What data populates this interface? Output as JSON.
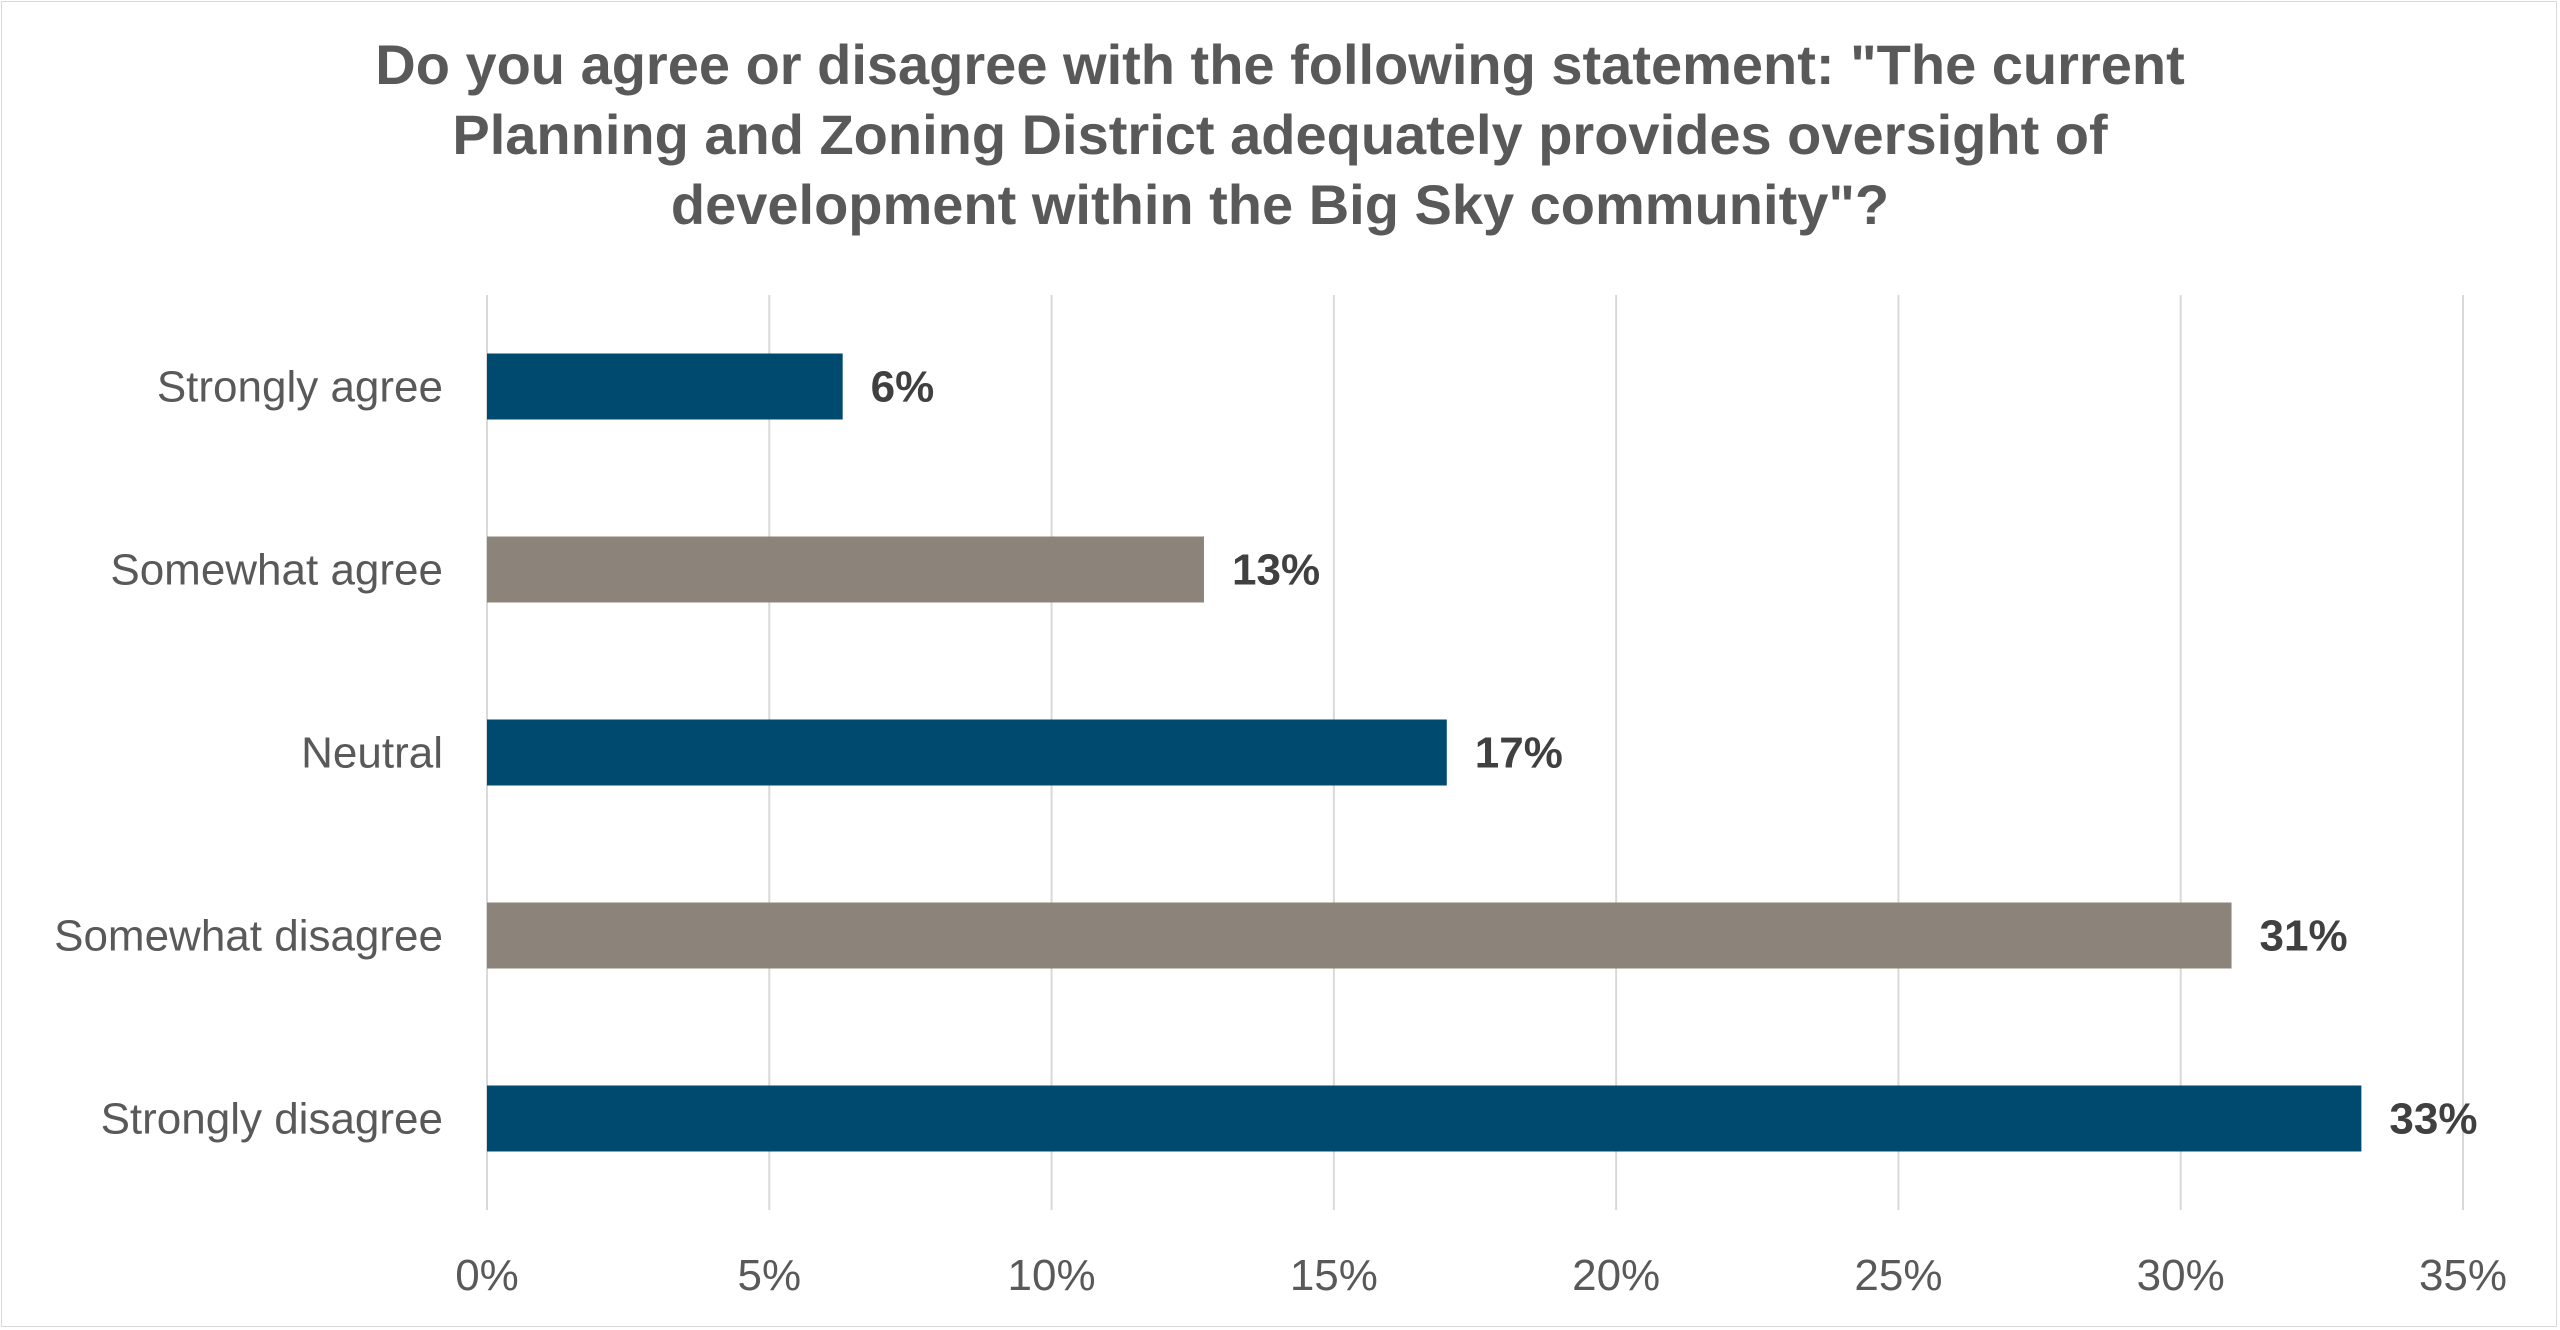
{
  "chart_data": {
    "type": "bar",
    "orientation": "horizontal",
    "title_lines": [
      "Do you agree or disagree with the following statement: \"The current",
      "Planning and Zoning District adequately provides oversight of",
      "development within the Big Sky community\"?"
    ],
    "categories": [
      "Strongly agree",
      "Somewhat agree",
      "Neutral",
      "Somewhat disagree",
      "Strongly disagree"
    ],
    "values": [
      6.3,
      12.7,
      17.0,
      30.9,
      33.2
    ],
    "data_labels": [
      "6%",
      "13%",
      "17%",
      "31%",
      "33%"
    ],
    "bar_colors": [
      "#004a70",
      "#8c847a",
      "#004a70",
      "#8c847a",
      "#004a70"
    ],
    "xlim": [
      0,
      35
    ],
    "x_ticks": [
      0,
      5,
      10,
      15,
      20,
      25,
      30,
      35
    ],
    "x_tick_labels": [
      "0%",
      "5%",
      "10%",
      "15%",
      "20%",
      "25%",
      "30%",
      "35%"
    ],
    "xlabel": "",
    "ylabel": "",
    "grid": "vertical",
    "legend": "none"
  },
  "colors": {
    "grid": "#d9d9d9",
    "axis_text": "#595959",
    "label_text": "#404040",
    "title": "#595959"
  }
}
